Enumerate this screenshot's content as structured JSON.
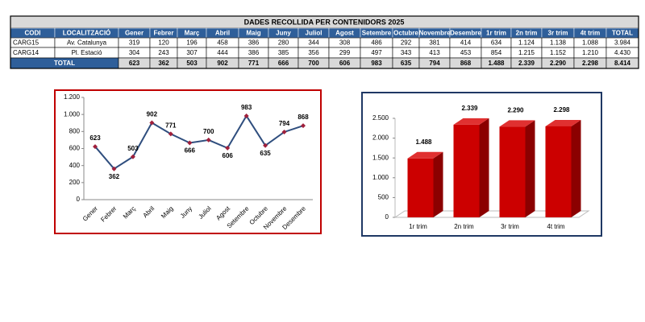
{
  "table": {
    "title": "DADES RECOLLIDA PER CONTENIDORS 2025",
    "header": [
      "CODI",
      "LOCALITZACIÓ",
      "Gener",
      "Febrer",
      "Març",
      "Abril",
      "Maig",
      "Juny",
      "Juliol",
      "Agost",
      "Setembre",
      "Octubre",
      "Novembre",
      "Desembre",
      "1r trim",
      "2n trim",
      "3r trim",
      "4t trim",
      "TOTAL"
    ],
    "rows": [
      [
        "CARG15",
        "Av. Catalunya",
        "319",
        "120",
        "196",
        "458",
        "386",
        "280",
        "344",
        "308",
        "486",
        "292",
        "381",
        "414",
        "634",
        "1.124",
        "1.138",
        "1.088",
        "3.984"
      ],
      [
        "CARG14",
        "Pl. Estació",
        "304",
        "243",
        "307",
        "444",
        "386",
        "385",
        "356",
        "299",
        "497",
        "343",
        "413",
        "453",
        "854",
        "1.215",
        "1.152",
        "1.210",
        "4.430"
      ]
    ],
    "total": [
      "TOTAL",
      "623",
      "362",
      "503",
      "902",
      "771",
      "666",
      "700",
      "606",
      "983",
      "635",
      "794",
      "868",
      "1.488",
      "2.339",
      "2.290",
      "2.298",
      "8.414"
    ]
  },
  "chart_data": [
    {
      "type": "line",
      "categories": [
        "Gener",
        "Febrer",
        "Març",
        "Abril",
        "Maig",
        "Juny",
        "Juliol",
        "Agost",
        "Setembre",
        "Octubre",
        "Novembre",
        "Desembre"
      ],
      "values": [
        623,
        362,
        503,
        902,
        771,
        666,
        700,
        606,
        983,
        635,
        794,
        868
      ],
      "color": "#2f4e7e",
      "marker_color": "#a0203c",
      "ylim": [
        0,
        1200
      ],
      "yticks": [
        0,
        200,
        400,
        600,
        800,
        {
          "value": 1000,
          "label": "1.000"
        },
        {
          "value": 1200,
          "label": "1.200"
        }
      ]
    },
    {
      "type": "bar3d",
      "categories": [
        "1r trim",
        "2n trim",
        "3r trim",
        "4t trim"
      ],
      "values": [
        1488,
        2339,
        2290,
        2298
      ],
      "value_labels": [
        "1.488",
        "2.339",
        "2.290",
        "2.298"
      ],
      "color": "#cc0000",
      "ylim": [
        0,
        2500
      ],
      "yticks": [
        0,
        500,
        {
          "value": 1000,
          "label": "1.000"
        },
        {
          "value": 1500,
          "label": "1.500"
        },
        {
          "value": 2000,
          "label": "2.000"
        },
        {
          "value": 2500,
          "label": "2.500"
        }
      ]
    }
  ]
}
